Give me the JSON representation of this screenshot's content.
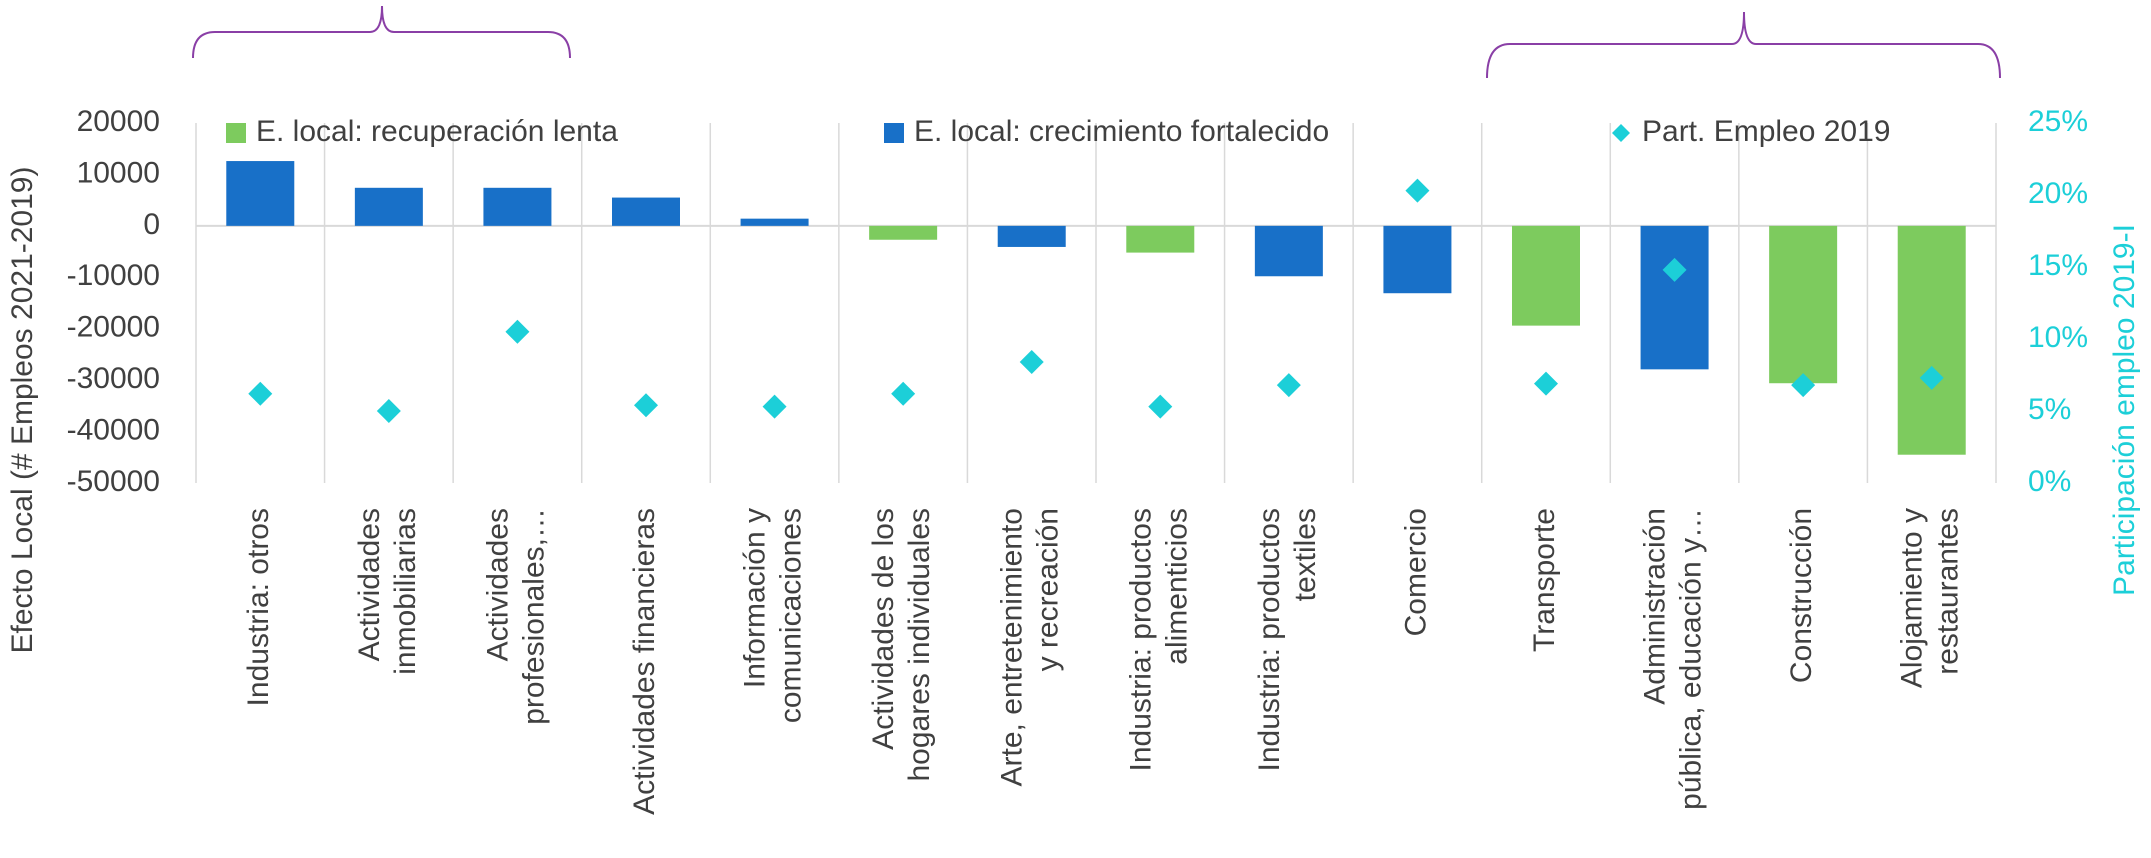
{
  "chart_data": {
    "type": "bar",
    "y_label": "Efecto Local (# Empleos 2021-2019)",
    "y2_label": "Participación empleo 2019-I",
    "categories": [
      "Industria: otros",
      "Actividades\ninmobiliarias",
      "Actividades\nprofesionales,…",
      "Actividades financieras",
      "Información y\ncomunicaciones",
      "Actividades de los\nhogares individuales",
      "Arte, entretenimiento\ny recreación",
      "Industria: productos\nalimenticios",
      "Industria: productos\ntextiles",
      "Comercio",
      "Transporte",
      "Administración\npública, educación y…",
      "Construcción",
      "Alojamiento y\nrestaurantes"
    ],
    "series": [
      {
        "name": "E. local: recuperación lenta",
        "color": "#7dcb5e",
        "values": [
          null,
          null,
          null,
          null,
          null,
          -2700,
          null,
          -5200,
          null,
          null,
          -19400,
          null,
          -30600,
          -44500
        ]
      },
      {
        "name": "E. local: crecimiento fortalecido",
        "color": "#1870c8",
        "values": [
          12600,
          7400,
          7400,
          5500,
          1400,
          null,
          -4100,
          null,
          -9800,
          -13100,
          null,
          -27900,
          null,
          null
        ]
      },
      {
        "name": "Part. Empleo 2019",
        "color": "#1ccfd8",
        "axis": "y2",
        "marker": "diamond",
        "values": [
          6.2,
          5.0,
          10.5,
          5.4,
          5.3,
          6.2,
          8.4,
          5.3,
          6.8,
          20.3,
          6.9,
          14.8,
          6.8,
          7.3
        ]
      }
    ],
    "ylim": [
      -50000,
      20000
    ],
    "yticks": [
      20000,
      10000,
      0,
      -10000,
      -20000,
      -30000,
      -40000,
      -50000
    ],
    "y2lim": [
      0,
      25
    ],
    "y2ticks": [
      {
        "value": 25,
        "label": "25%"
      },
      {
        "value": 20,
        "label": "20%"
      },
      {
        "value": 15,
        "label": "15%"
      },
      {
        "value": 10,
        "label": "10%"
      },
      {
        "value": 5,
        "label": "5%"
      },
      {
        "value": 0,
        "label": "0%"
      }
    ],
    "grid": true
  }
}
